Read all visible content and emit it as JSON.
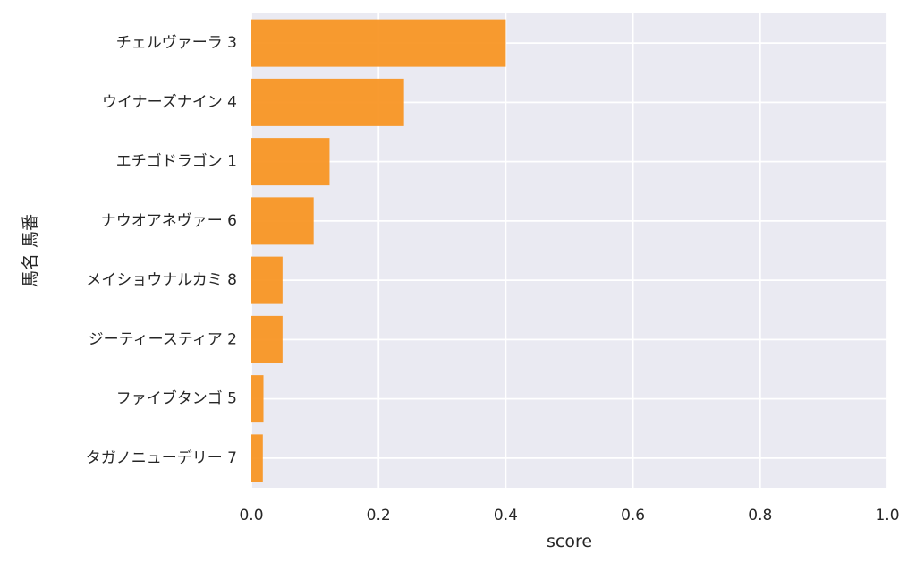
{
  "chart_data": {
    "type": "bar",
    "orientation": "horizontal",
    "categories": [
      "チェルヴァーラ 3",
      "ウイナーズナイン 4",
      "エチゴドラゴン 1",
      "ナウオアネヴァー 6",
      "メイショウナルカミ 8",
      "ジーティースティア 2",
      "ファイブタンゴ 5",
      "タガノニューデリー 7"
    ],
    "values": [
      0.4,
      0.24,
      0.123,
      0.098,
      0.049,
      0.049,
      0.019,
      0.018
    ],
    "xlabel": "score",
    "ylabel": "馬名 馬番",
    "xlim": [
      0.0,
      1.0
    ],
    "xticks": [
      "0.0",
      "0.2",
      "0.4",
      "0.6",
      "0.8",
      "1.0"
    ],
    "grid": true,
    "bar_color": "#f7931e",
    "background_color": "#eaeaf2"
  }
}
